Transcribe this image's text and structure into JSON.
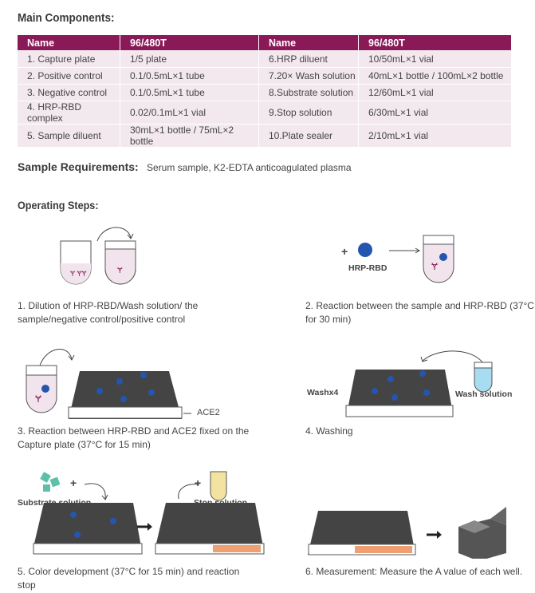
{
  "main_components": {
    "title": "Main Components:",
    "headers": [
      "Name",
      "96/480T",
      "Name",
      "96/480T"
    ],
    "rows": [
      [
        "1. Capture plate",
        "1/5 plate",
        "6.HRP diluent",
        "10/50mL×1 vial"
      ],
      [
        "2. Positive control",
        "0.1/0.5mL×1 tube",
        "7.20× Wash solution",
        "40mL×1 bottle / 100mL×2 bottle"
      ],
      [
        "3. Negative control",
        "0.1/0.5mL×1 tube",
        "8.Substrate solution",
        "12/60mL×1 vial"
      ],
      [
        "4. HRP-RBD complex",
        "0.02/0.1mL×1 vial",
        "9.Stop solution",
        "6/30mL×1 vial"
      ],
      [
        "5. Sample diluent",
        "30mL×1 bottle / 75mL×2 bottle",
        "10.Plate sealer",
        "2/10mL×1 vial"
      ]
    ]
  },
  "sample_requirements": {
    "label": "Sample Requirements:",
    "value": "Serum sample, K2-EDTA anticoagulated plasma"
  },
  "operating_steps": {
    "title": "Operating Steps:",
    "steps": [
      "1. Dilution of HRP-RBD/Wash solution/ the sample/negative control/positive control",
      "2. Reaction between the sample and HRP-RBD (37°C for 30 min)",
      "3. Reaction between HRP-RBD and ACE2 fixed on the Capture plate (37°C for 15 min)",
      "4. Washing",
      "5. Color development (37°C for 15 min) and reaction stop",
      "6. Measurement: Measure the A value of each well."
    ],
    "labels": {
      "hrp_rbd": "HRP-RBD",
      "ace2": "ACE2",
      "washx4": "Washx4",
      "wash_solution": "Wash solution",
      "substrate_solution": "Substrate solution",
      "stop_solution": "Stop solution",
      "plus": "+"
    }
  },
  "colors": {
    "header": "#8a1a57",
    "row": "#f3e8ed",
    "antibody": "#8a1a57",
    "hrp_rbd": "#2456b0",
    "wash": "#a8dcf0",
    "stop": "#f3e3a0",
    "color_wells": "#f0a070"
  }
}
